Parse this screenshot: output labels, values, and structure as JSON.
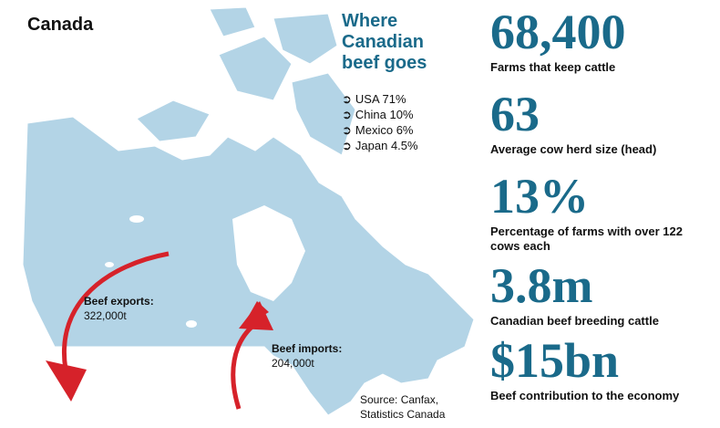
{
  "title": "Canada",
  "destinations": {
    "heading": [
      "Where",
      "Canadian",
      "beef goes"
    ],
    "items": [
      "USA 71%",
      "China 10%",
      "Mexico 6%",
      "Japan 4.5%"
    ]
  },
  "exports": {
    "label": "Beef exports:",
    "value": "322,000t"
  },
  "imports": {
    "label": "Beef imports:",
    "value": "204,000t"
  },
  "source": [
    "Source: Canfax,",
    "Statistics Canada"
  ],
  "stats": [
    {
      "value": "68,400",
      "label": "Farms that keep cattle"
    },
    {
      "value": "63",
      "label": "Average cow herd size (head)"
    },
    {
      "value": "13%",
      "label": "Percentage of farms with over 122 cows each"
    },
    {
      "value": "3.8m",
      "label": "Canadian beef breeding cattle"
    },
    {
      "value": "$15bn",
      "label": "Beef contribution to the economy"
    }
  ]
}
